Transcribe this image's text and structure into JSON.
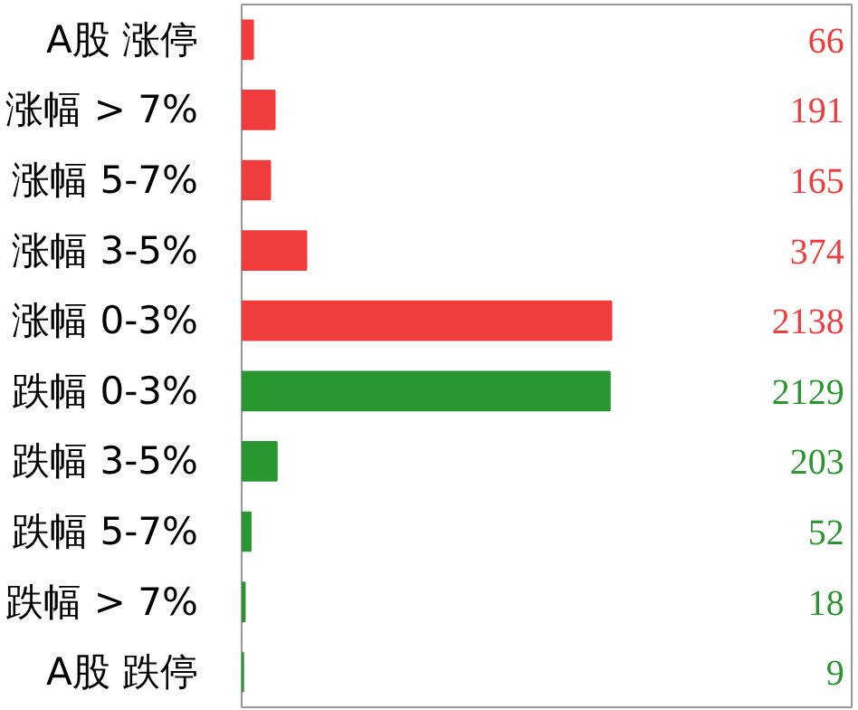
{
  "chart_data": {
    "type": "bar",
    "orientation": "horizontal",
    "categories": [
      "A股 涨停",
      "涨幅 > 7%",
      "涨幅 5-7%",
      "涨幅 3-5%",
      "涨幅 0-3%",
      "跌幅 0-3%",
      "跌幅 3-5%",
      "跌幅 5-7%",
      "跌幅 > 7%",
      "A股 跌停"
    ],
    "values": [
      66,
      191,
      165,
      374,
      2138,
      2129,
      203,
      52,
      18,
      9
    ],
    "colors": [
      "#f03c3c",
      "#f03c3c",
      "#f03c3c",
      "#f03c3c",
      "#f03c3c",
      "#2a9630",
      "#2a9630",
      "#2a9630",
      "#2a9630",
      "#2a9630"
    ],
    "data_labels": true
  }
}
